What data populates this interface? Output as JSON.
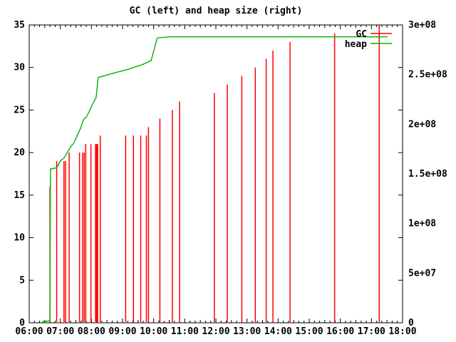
{
  "chart_data": {
    "type": "mixed",
    "title": "GC (left) and heap size (right)",
    "colors": {
      "gc": "#ff0000",
      "heap": "#00b400",
      "title": "#800000",
      "axis": "#000000"
    },
    "layout": {
      "grid": false,
      "legend_position": "top-right-inside"
    },
    "x_axis": {
      "start_hour": 6,
      "end_hour": 18,
      "tick_labels": [
        "06:00",
        "07:00",
        "08:00",
        "09:00",
        "10:00",
        "11:00",
        "12:00",
        "13:00",
        "14:00",
        "15:00",
        "16:00",
        "17:00",
        "18:00"
      ],
      "minor_tick_minutes": 10
    },
    "y_left_axis": {
      "range": [
        0,
        35
      ],
      "tick_step": 5,
      "tick_labels": [
        "0",
        "5",
        "10",
        "15",
        "20",
        "25",
        "30",
        "35"
      ]
    },
    "y_right_axis": {
      "range": [
        0,
        300000000
      ],
      "tick_step": 50000000,
      "tick_labels": [
        "0",
        "5e+07",
        "1e+08",
        "1.5e+08",
        "2e+08",
        "2.5e+08",
        "3e+08"
      ]
    },
    "legend": [
      {
        "name": "GC",
        "color": "#ff0000"
      },
      {
        "name": "heap",
        "color": "#00b400"
      }
    ],
    "series": [
      {
        "name": "GC",
        "style": "impulse",
        "axis": "left",
        "color": "#ff0000",
        "points": [
          {
            "t": "06:40",
            "v": 16
          },
          {
            "t": "06:53",
            "v": 19
          },
          {
            "t": "07:07",
            "v": 19
          },
          {
            "t": "07:10",
            "v": 19
          },
          {
            "t": "07:17",
            "v": 20
          },
          {
            "t": "07:37",
            "v": 20
          },
          {
            "t": "07:43",
            "v": 20
          },
          {
            "t": "07:46",
            "v": 20
          },
          {
            "t": "07:49",
            "v": 21
          },
          {
            "t": "07:59",
            "v": 21
          },
          {
            "t": "08:08",
            "v": 21
          },
          {
            "t": "08:09",
            "v": 21
          },
          {
            "t": "08:11",
            "v": 21
          },
          {
            "t": "08:12",
            "v": 21
          },
          {
            "t": "08:17",
            "v": 22
          },
          {
            "t": "09:06",
            "v": 22
          },
          {
            "t": "09:21",
            "v": 22
          },
          {
            "t": "09:35",
            "v": 22
          },
          {
            "t": "09:46",
            "v": 22
          },
          {
            "t": "09:50",
            "v": 23
          },
          {
            "t": "10:12",
            "v": 24
          },
          {
            "t": "10:36",
            "v": 25
          },
          {
            "t": "10:50",
            "v": 26
          },
          {
            "t": "11:57",
            "v": 27
          },
          {
            "t": "12:22",
            "v": 28
          },
          {
            "t": "12:50",
            "v": 29
          },
          {
            "t": "13:16",
            "v": 30
          },
          {
            "t": "13:37",
            "v": 31
          },
          {
            "t": "13:50",
            "v": 32
          },
          {
            "t": "14:23",
            "v": 33
          },
          {
            "t": "15:49",
            "v": 34
          },
          {
            "t": "17:15",
            "v": 35
          }
        ]
      },
      {
        "name": "heap",
        "style": "line",
        "axis": "right",
        "color": "#00b400",
        "points": [
          {
            "t": "06:25",
            "v": 1000000
          },
          {
            "t": "06:40",
            "v": 2000000
          },
          {
            "t": "06:41",
            "v": 155000000
          },
          {
            "t": "06:53",
            "v": 156000000
          },
          {
            "t": "07:00",
            "v": 163000000
          },
          {
            "t": "07:07",
            "v": 166000000
          },
          {
            "t": "07:14",
            "v": 172000000
          },
          {
            "t": "07:21",
            "v": 178000000
          },
          {
            "t": "07:26",
            "v": 181000000
          },
          {
            "t": "07:39",
            "v": 196000000
          },
          {
            "t": "07:45",
            "v": 205000000
          },
          {
            "t": "07:50",
            "v": 207000000
          },
          {
            "t": "07:55",
            "v": 212000000
          },
          {
            "t": "08:02",
            "v": 220000000
          },
          {
            "t": "08:09",
            "v": 227000000
          },
          {
            "t": "08:13",
            "v": 247000000
          },
          {
            "t": "08:46",
            "v": 252000000
          },
          {
            "t": "09:09",
            "v": 255000000
          },
          {
            "t": "09:38",
            "v": 260000000
          },
          {
            "t": "09:55",
            "v": 264000000
          },
          {
            "t": "10:07",
            "v": 287000000
          },
          {
            "t": "10:30",
            "v": 288000000
          },
          {
            "t": "17:31",
            "v": 288000000
          }
        ]
      }
    ]
  }
}
